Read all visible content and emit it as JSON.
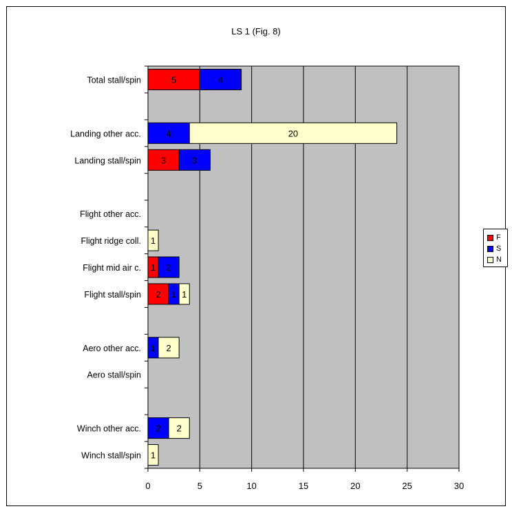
{
  "chart_data": {
    "type": "bar",
    "orientation": "horizontal",
    "stacked": true,
    "title": "LS 1 (Fig. 8)",
    "xlabel": "",
    "ylabel": "",
    "xlim": [
      0,
      30
    ],
    "x_ticks": [
      0,
      5,
      10,
      15,
      20,
      25,
      30
    ],
    "grid": true,
    "legend_position": "right",
    "categories": [
      "Total stall/spin",
      "",
      "Landing other acc.",
      "Landing stall/spin",
      "",
      "Flight other acc.",
      "Flight ridge coll.",
      "Flight mid air c.",
      "Flight stall/spin",
      "",
      "Aero other acc.",
      "Aero stall/spin",
      "",
      "Winch other acc.",
      "Winch stall/spin"
    ],
    "series": [
      {
        "name": "F",
        "color": "#ff0000",
        "values": [
          5,
          0,
          0,
          3,
          0,
          0,
          0,
          1,
          2,
          0,
          0,
          0,
          0,
          0,
          0
        ]
      },
      {
        "name": "S",
        "color": "#0000ff",
        "values": [
          4,
          0,
          4,
          3,
          0,
          0,
          0,
          2,
          1,
          0,
          1,
          0,
          0,
          2,
          0
        ]
      },
      {
        "name": "N",
        "color": "#ffffcc",
        "values": [
          0,
          0,
          20,
          0,
          0,
          0,
          1,
          0,
          1,
          0,
          2,
          0,
          0,
          2,
          1
        ]
      }
    ],
    "plot_background": "#c0c0c0"
  }
}
